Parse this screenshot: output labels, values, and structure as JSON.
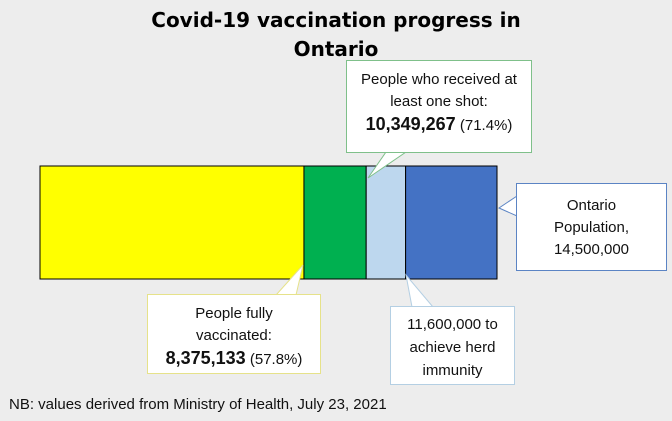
{
  "title": "Covid-19 vaccination progress in Ontario",
  "chart_data": {
    "type": "bar",
    "orientation": "horizontal-stacked",
    "xlim": [
      0,
      14500000
    ],
    "series": [
      {
        "label": "People fully vaccinated",
        "value": 8375133,
        "color": "#ffff00"
      },
      {
        "label": "People who received at least one shot",
        "value": 10349267,
        "color": "#00b050"
      },
      {
        "label": "achieve herd immunity",
        "value": 11600000,
        "color": "#bdd7ee"
      },
      {
        "label": "Ontario Population",
        "value": 14500000,
        "color": "#4472c4"
      }
    ]
  },
  "callouts": {
    "one_dose": {
      "line1": "People who received at",
      "line2": "least one shot:",
      "value": "10,349,267",
      "pct": "(71.4%)"
    },
    "population": {
      "line1": "Ontario",
      "line2": "Population,",
      "line3": "14,500,000"
    },
    "fully": {
      "line1": "People fully",
      "line2": "vaccinated:",
      "value": "8,375,133",
      "pct": "(57.8%)"
    },
    "herd": {
      "line1": "11,600,000 to",
      "line2": "achieve herd",
      "line3": "immunity"
    }
  },
  "footnote": "NB: values derived from Ministry of Health, July 23, 2021"
}
